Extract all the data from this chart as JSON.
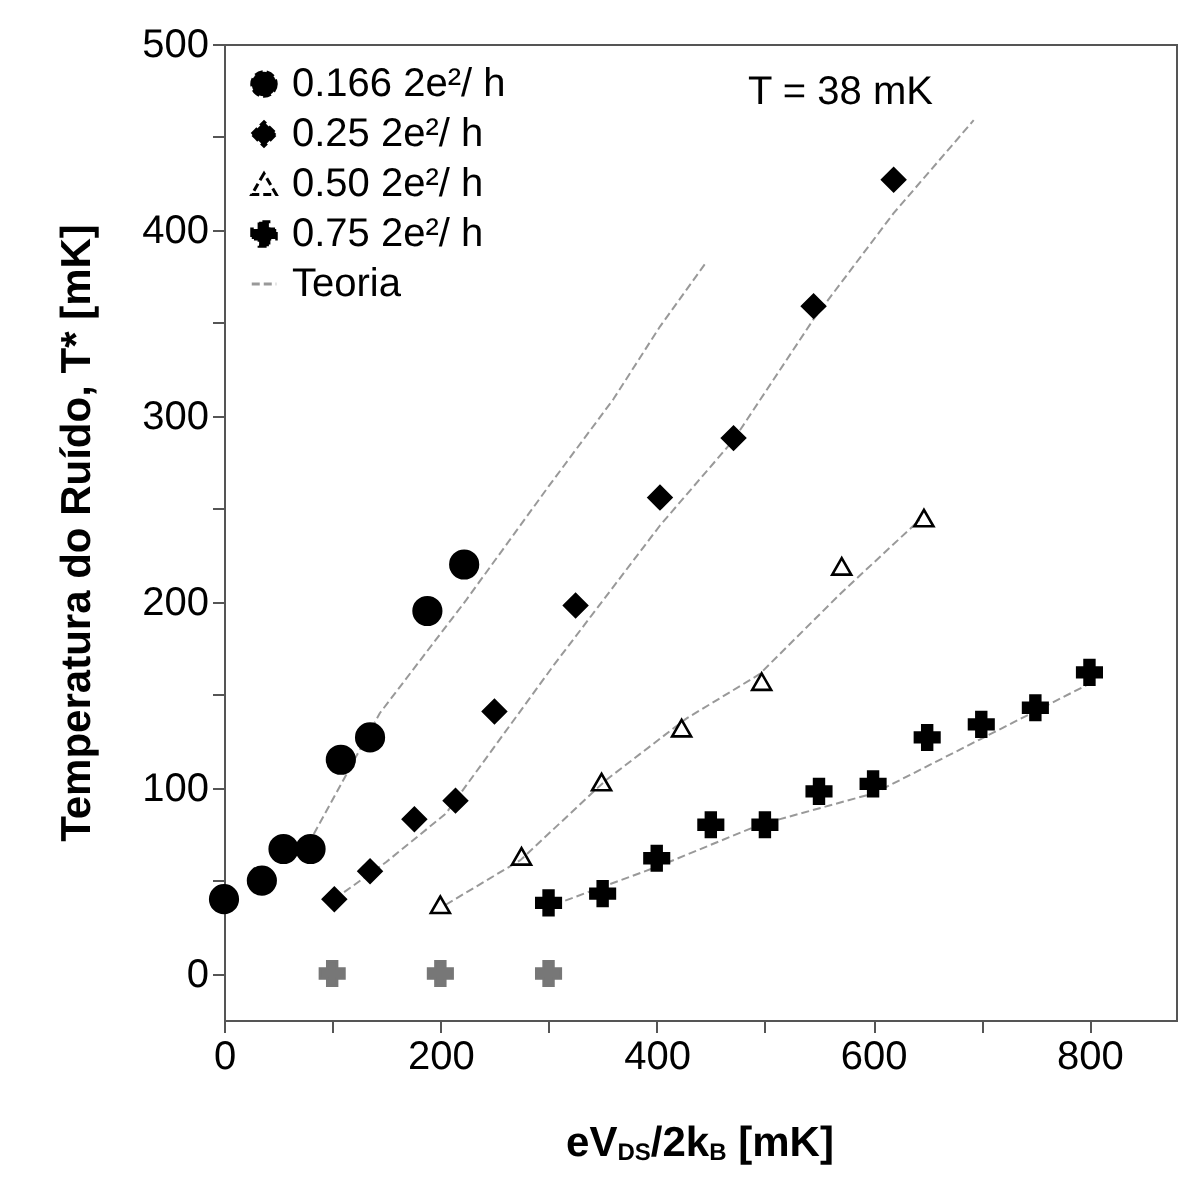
{
  "chart_data": {
    "type": "scatter",
    "xlabel": "eV$_{DS}$/2k$_{B}$  [mK]",
    "ylabel": "Temperatura do Ruído, T*  [mK]",
    "annotations": [
      "T = 38 mK"
    ],
    "xlim": [
      0,
      880
    ],
    "ylim": [
      -25,
      500
    ],
    "xticks": [
      0,
      {
        "value": 100,
        "label": null
      },
      200,
      {
        "value": 300,
        "label": null
      },
      400,
      {
        "value": 500,
        "label": null
      },
      600,
      {
        "value": 700,
        "label": null
      },
      800
    ],
    "yticks": [
      0,
      {
        "value": 50,
        "label": null
      },
      100,
      {
        "value": 150,
        "label": null
      },
      200,
      {
        "value": 250,
        "label": null
      },
      300,
      {
        "value": 350,
        "label": null
      },
      400,
      {
        "value": 450,
        "label": null
      },
      500
    ],
    "legend": "top left",
    "grid": false,
    "series": [
      {
        "name": "0.166 2e²/ h",
        "color": "#000000",
        "marker": "circle",
        "x": [
          0,
          35,
          55,
          80,
          108,
          135,
          188,
          222
        ],
        "values": [
          40,
          50,
          67,
          67,
          115,
          127,
          195,
          220
        ]
      },
      {
        "name": "0.25 2e²/ h",
        "color": "#000000",
        "marker": "diamond",
        "x": [
          102,
          135,
          176,
          214,
          250,
          325,
          403,
          471,
          545,
          619
        ],
        "values": [
          40,
          55,
          83,
          93,
          141,
          198,
          256,
          288,
          359,
          427
        ]
      },
      {
        "name": "0.50 2e²/ h",
        "color": "#000000",
        "marker": "triangle",
        "x": [
          200,
          275,
          349,
          423,
          497,
          571,
          647
        ],
        "values": [
          37,
          63,
          103,
          132,
          157,
          219,
          245
        ]
      },
      {
        "name": "0.75 2e²/ h",
        "color": "#000000",
        "marker": "cross",
        "x": [
          300,
          350,
          400,
          450,
          500,
          550,
          600,
          650,
          700,
          750,
          800
        ],
        "values": [
          38,
          43,
          62,
          80,
          80,
          98,
          102,
          127,
          134,
          143,
          162
        ]
      },
      {
        "name": "Teoria",
        "type": "line",
        "color": "#999999",
        "line_style": "dashed",
        "x": [
          83,
          144,
          224,
          300,
          360,
          403,
          445
        ],
        "values": [
          75,
          140,
          201,
          262,
          309,
          348,
          382
        ]
      },
      {
        "type": "line",
        "color": "#999999",
        "line_style": "dashed",
        "x": [
          102,
          150,
          205,
          305,
          403,
          471,
          545,
          619,
          693
        ],
        "values": [
          40,
          60,
          86,
          166,
          241,
          287,
          352,
          409,
          459
        ]
      },
      {
        "type": "line",
        "color": "#999999",
        "line_style": "dashed",
        "x": [
          205,
          274,
          353,
          427,
          495,
          571,
          643
        ],
        "values": [
          37,
          61,
          104,
          137,
          161,
          205,
          244
        ]
      },
      {
        "type": "line",
        "color": "#999999",
        "line_style": "dashed",
        "x": [
          305,
          403,
          495,
          601,
          699,
          797
        ],
        "values": [
          37,
          58,
          80,
          97,
          126,
          155
        ]
      },
      {
        "color": "#777777",
        "marker": "cross",
        "x": [
          100,
          200,
          300
        ],
        "values": [
          0,
          0,
          0
        ]
      }
    ]
  }
}
